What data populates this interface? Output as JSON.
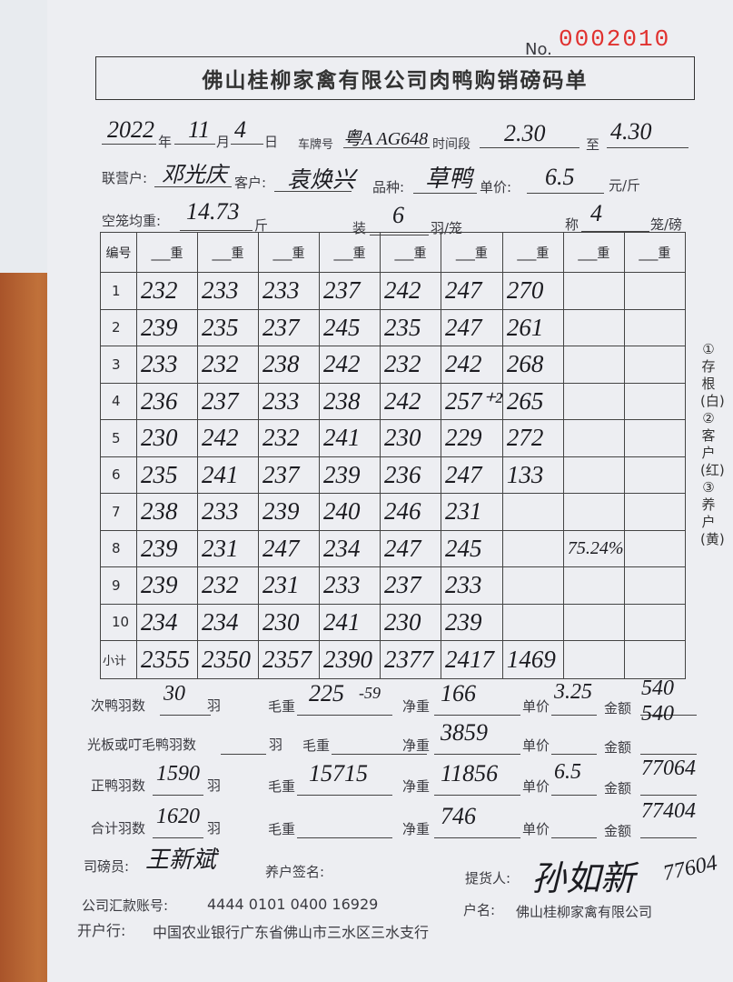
{
  "form": {
    "no_label": "No.",
    "number": "0002010",
    "title": "佛山桂柳家禽有限公司肉鸭购销磅码单",
    "year": "2022",
    "year_label": "年",
    "month": "11",
    "month_label": "月",
    "day": "4",
    "day_label": "日",
    "plate_label": "车牌号",
    "plate": "粤A AG648",
    "period_label": "时间段",
    "period_from": "2.30",
    "to_label": "至",
    "period_to": "4.30",
    "partner_label": "联营户:",
    "partner": "邓光庆",
    "customer_label": "客户:",
    "customer": "袁焕兴",
    "breed_label": "品种:",
    "breed": "草鸭",
    "price_label": "单价:",
    "price": "6.5",
    "price_unit": "元/斤",
    "cage_weight_label": "空笼均重:",
    "cage_weight": "14.73",
    "cage_weight_unit": "斤",
    "load_label": "装",
    "load": "6",
    "load_unit": "羽/笼",
    "weigh_label": "称",
    "weigh": "4",
    "weigh_unit": "笼/磅"
  },
  "table": {
    "index_header": "编号",
    "col_header": "___重",
    "subtotal_label": "小计",
    "rows": [
      {
        "n": "1",
        "v": [
          "232",
          "233",
          "233",
          "237",
          "242",
          "247",
          "270",
          "",
          ""
        ]
      },
      {
        "n": "2",
        "v": [
          "239",
          "235",
          "237",
          "245",
          "235",
          "247",
          "261",
          "",
          ""
        ]
      },
      {
        "n": "3",
        "v": [
          "233",
          "232",
          "238",
          "242",
          "232",
          "242",
          "268",
          "",
          ""
        ]
      },
      {
        "n": "4",
        "v": [
          "236",
          "237",
          "233",
          "238",
          "242",
          "257⁺²",
          "265",
          "",
          ""
        ]
      },
      {
        "n": "5",
        "v": [
          "230",
          "242",
          "232",
          "241",
          "230",
          "229",
          "272",
          "",
          ""
        ]
      },
      {
        "n": "6",
        "v": [
          "235",
          "241",
          "237",
          "239",
          "236",
          "247",
          "133",
          "",
          ""
        ]
      },
      {
        "n": "7",
        "v": [
          "238",
          "233",
          "239",
          "240",
          "246",
          "231",
          "",
          "",
          ""
        ]
      },
      {
        "n": "8",
        "v": [
          "239",
          "231",
          "247",
          "234",
          "247",
          "245",
          "",
          "75.24%",
          ""
        ]
      },
      {
        "n": "9",
        "v": [
          "239",
          "232",
          "231",
          "233",
          "237",
          "233",
          "",
          "",
          ""
        ]
      },
      {
        "n": "10",
        "v": [
          "234",
          "234",
          "230",
          "241",
          "230",
          "239",
          "",
          "",
          ""
        ]
      }
    ],
    "subtotals": [
      "2355",
      "2350",
      "2357",
      "2390",
      "2377",
      "2417",
      "1469",
      "",
      ""
    ]
  },
  "side_note": "①存根(白) ②客户(红) ③养户(黄)",
  "summary": {
    "r1": {
      "count_label": "次鸭羽数",
      "count": "30",
      "unit": "羽",
      "gross_label": "毛重",
      "gross": "225",
      "note": "-59",
      "net_label": "净重",
      "net": "166",
      "price_label": "单价",
      "price": "3.25",
      "amount_label": "金额",
      "amount": "540",
      "amount2": "540"
    },
    "r2": {
      "count_label": "光板或叮毛鸭羽数",
      "unit": "羽",
      "gross_label": "毛重",
      "net_label": "净重",
      "net": "3859",
      "price_label": "单价",
      "amount_label": "金额"
    },
    "r3": {
      "count_label": "正鸭羽数",
      "count": "1590",
      "unit": "羽",
      "gross_label": "毛重",
      "gross": "15715",
      "net_label": "净重",
      "net": "11856",
      "price_label": "单价",
      "price": "6.5",
      "amount_label": "金额",
      "amount": "77064"
    },
    "r4": {
      "count_label": "合计羽数",
      "count": "1620",
      "unit": "羽",
      "gross_label": "毛重",
      "net_label": "净重",
      "net": "746",
      "price_label": "单价",
      "amount_label": "金额",
      "amount": "77404"
    }
  },
  "footer": {
    "weigher_label": "司磅员:",
    "weigher": "王新斌",
    "farmer_sign_label": "养户签名:",
    "pickup_label": "提货人:",
    "pickup": "孙如新",
    "pickup_note": "77604",
    "account_label": "公司汇款账号:",
    "account": "4444 0101 0400 16929",
    "holder_label": "户名:",
    "holder": "佛山桂柳家禽有限公司",
    "bank_label": "开户行:",
    "bank": "中国农业银行广东省佛山市三水区三水支行"
  }
}
